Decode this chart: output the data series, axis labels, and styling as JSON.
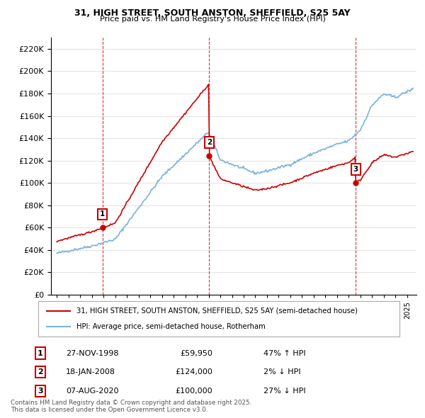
{
  "title": "31, HIGH STREET, SOUTH ANSTON, SHEFFIELD, S25 5AY",
  "subtitle": "Price paid vs. HM Land Registry's House Price Index (HPI)",
  "legend_line1": "31, HIGH STREET, SOUTH ANSTON, SHEFFIELD, S25 5AY (semi-detached house)",
  "legend_line2": "HPI: Average price, semi-detached house, Rotherham",
  "footer": "Contains HM Land Registry data © Crown copyright and database right 2025.\nThis data is licensed under the Open Government Licence v3.0.",
  "sales": [
    {
      "num": 1,
      "date": "27-NOV-1998",
      "price": 59950,
      "pct": "47%",
      "dir": "↑",
      "year": 1998.92
    },
    {
      "num": 2,
      "date": "18-JAN-2008",
      "price": 124000,
      "pct": "2%",
      "dir": "↓",
      "year": 2008.05
    },
    {
      "num": 3,
      "date": "07-AUG-2020",
      "price": 100000,
      "pct": "27%",
      "dir": "↓",
      "year": 2020.6
    }
  ],
  "red_color": "#cc0000",
  "blue_color": "#7ab3d9",
  "dashed_color": "#cc0000",
  "ylim": [
    0,
    230000
  ],
  "yticks": [
    0,
    20000,
    40000,
    60000,
    80000,
    100000,
    120000,
    140000,
    160000,
    180000,
    200000,
    220000
  ],
  "xlim_start": 1994.5,
  "xlim_end": 2025.8
}
